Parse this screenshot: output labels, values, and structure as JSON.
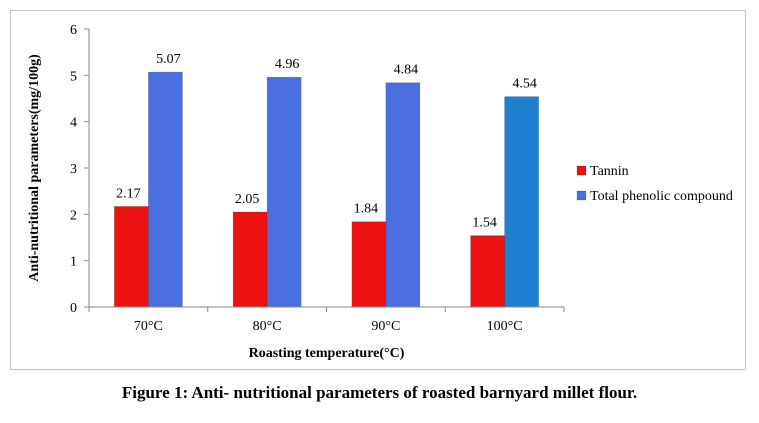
{
  "caption": "Figure 1: Anti- nutritional parameters of roasted barnyard millet flour.",
  "chart_data": {
    "type": "bar",
    "categories": [
      "70°C",
      "80°C",
      "90°C",
      "100°C"
    ],
    "series": [
      {
        "name": "Tannin",
        "values": [
          2.17,
          2.05,
          1.84,
          1.54
        ],
        "color": "#ee1111"
      },
      {
        "name": "Total phenolic compound",
        "values": [
          5.07,
          4.96,
          4.84,
          4.54
        ],
        "color": "#4a6fe0"
      }
    ],
    "bar_color_overrides": [
      {
        "series": 1,
        "category": 3,
        "color": "#1d7fd0"
      }
    ],
    "title": "",
    "xlabel": "Roasting temperature(°C)",
    "ylabel": "Anti-nutritional parameters(mg/100g)",
    "ylim": [
      0,
      6
    ],
    "yticks": [
      "0",
      "1",
      "2",
      "3",
      "4",
      "5",
      "6"
    ],
    "grid": false,
    "legend": "right"
  }
}
